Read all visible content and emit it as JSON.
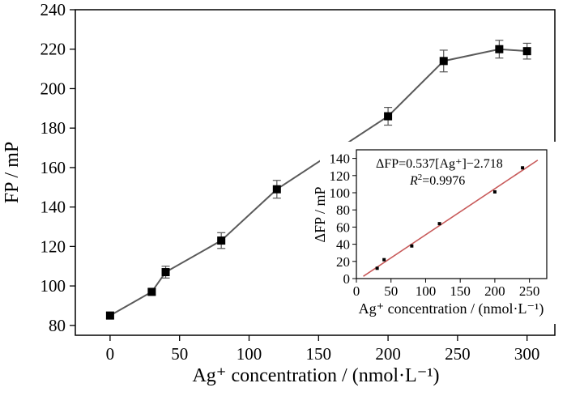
{
  "chart_data": [
    {
      "type": "line",
      "xlabel": "Ag⁺ concentration / (nmol·L⁻¹)",
      "ylabel": "FP / mP",
      "xlim": [
        -25,
        320
      ],
      "ylim": [
        75,
        240
      ],
      "xticks": [
        0,
        50,
        100,
        150,
        200,
        250,
        300
      ],
      "yticks": [
        80,
        100,
        120,
        140,
        160,
        180,
        200,
        220,
        240
      ],
      "series": [
        {
          "marker": "square",
          "color": "#5a5a5a",
          "x": [
            0,
            30,
            40,
            80,
            120,
            200,
            240,
            280,
            300
          ],
          "y": [
            85,
            97,
            107,
            123,
            149,
            186,
            214,
            220,
            219
          ],
          "error": [
            1.5,
            1.5,
            3,
            4,
            4.5,
            4.5,
            5.5,
            4.5,
            4
          ]
        }
      ],
      "grid": false
    },
    {
      "type": "scatter",
      "inset": true,
      "xlabel": "Ag⁺ concentration / (nmol·L⁻¹)",
      "ylabel": "ΔFP / mP",
      "xlim": [
        0,
        275
      ],
      "ylim": [
        0,
        150
      ],
      "xticks": [
        0,
        50,
        100,
        150,
        200,
        250
      ],
      "yticks": [
        0,
        20,
        40,
        60,
        80,
        100,
        120,
        140
      ],
      "points": {
        "x": [
          30,
          40,
          80,
          120,
          200,
          240
        ],
        "y": [
          12,
          22,
          38,
          64,
          101,
          129
        ]
      },
      "fit": {
        "slope": 0.537,
        "intercept": -2.718,
        "x_range": [
          10,
          262
        ],
        "color": "#c85a5a"
      },
      "equation_text": "ΔFP=0.537[Ag⁺]−2.718",
      "r2_label": "R",
      "r2_value": "=0.9976"
    }
  ]
}
